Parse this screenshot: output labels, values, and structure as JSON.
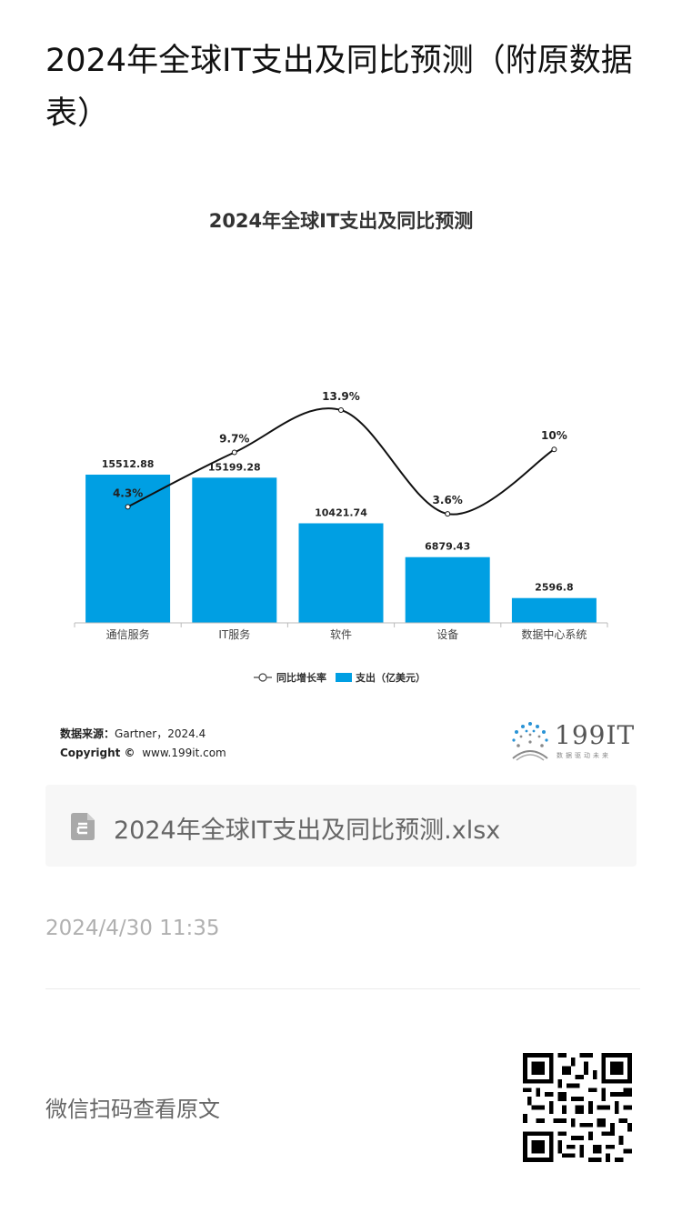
{
  "page": {
    "title": "2024年全球IT支出及同比预测（附原数据表）",
    "file_name": "2024年全球IT支出及同比预测.xlsx",
    "timestamp": "2024/4/30 11:35",
    "qr_caption": "微信扫码查看原文"
  },
  "source": {
    "label": "数据来源：",
    "text": "Gartner，2024.4",
    "copyright_label": "Copyright ©",
    "copyright_text": "www.199it.com"
  },
  "brand": {
    "name": "199IT",
    "tagline": "数据驱动未来"
  },
  "colors": {
    "bar": "#009fe3",
    "line": "#111111"
  },
  "icons": {
    "file": "spreadsheet-file-icon",
    "logo": "199it-logo-icon",
    "qr": "qr-code-icon"
  },
  "chart_data": {
    "type": "bar",
    "title": "2024年全球IT支出及同比预测",
    "categories": [
      "通信服务",
      "IT服务",
      "软件",
      "设备",
      "数据中心系统"
    ],
    "series": [
      {
        "name": "支出（亿美元）",
        "type": "bar",
        "values": [
          15512.88,
          15199.28,
          10421.74,
          6879.43,
          2596.8
        ],
        "labels": [
          "15512.88",
          "15199.28",
          "10421.74",
          "6879.43",
          "2596.8"
        ]
      },
      {
        "name": "同比增长率",
        "type": "line",
        "values": [
          4.3,
          9.7,
          13.9,
          3.6,
          10
        ],
        "labels": [
          "4.3%",
          "9.7%",
          "13.9%",
          "3.6%",
          "10%"
        ]
      }
    ],
    "legend": [
      {
        "label": "同比增长率",
        "marker": "line"
      },
      {
        "label": "支出（亿美元）",
        "marker": "box"
      }
    ],
    "legend_position": "bottom",
    "grid": false
  }
}
